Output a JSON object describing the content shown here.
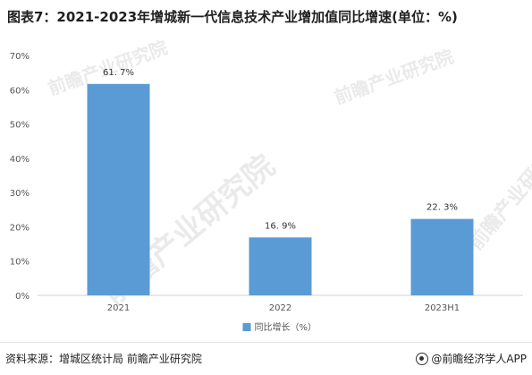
{
  "title": "图表7：2021-2023年增城新一代信息技术产业增加值同比增速(单位：%)",
  "chart_data": {
    "type": "bar",
    "title": "图表7：2021-2023年增城新一代信息技术产业增加值同比增速(单位：%)",
    "categories": [
      "2021",
      "2022",
      "2023H1"
    ],
    "series": [
      {
        "name": "同比增长（%）",
        "values": [
          61.7,
          16.9,
          22.3
        ]
      }
    ],
    "data_labels": [
      "61. 7%",
      "16. 9%",
      "22. 3%"
    ],
    "ylim": [
      0,
      70
    ],
    "yticks": [
      0,
      10,
      20,
      30,
      40,
      50,
      60,
      70
    ],
    "ytick_labels": [
      "0%",
      "10%",
      "20%",
      "30%",
      "40%",
      "50%",
      "60%",
      "70%"
    ],
    "xlabel": "",
    "ylabel": "",
    "grid": false,
    "legend_position": "bottom",
    "bar_color": "#5b9bd5"
  },
  "legend": {
    "label": "同比增长（%）"
  },
  "footer": {
    "source": "资料来源：增城区统计局 前瞻产业研究院",
    "brand": "@前瞻经济学人APP"
  },
  "watermarks": [
    "前瞻产业研究院",
    "前瞻产业研究院",
    "前瞻产业研究院",
    "前瞻产业研究院"
  ]
}
